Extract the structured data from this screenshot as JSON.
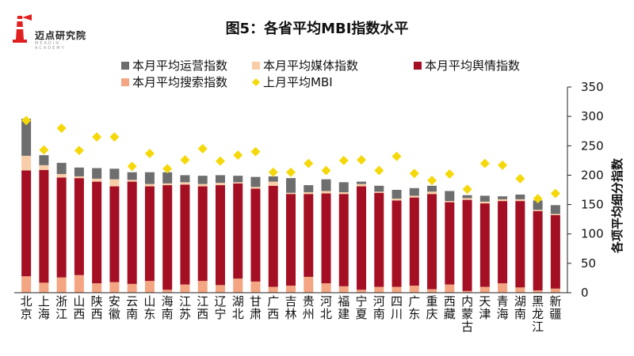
{
  "logo": {
    "name": "迈点研究院",
    "subtitle": "MEADIN ACADEMY"
  },
  "chart_data": {
    "type": "bar",
    "title": "图5：各省平均MBI指数水平",
    "xlabel": "",
    "ylabel": "各项平均细分指数",
    "ylim": [
      0,
      350
    ],
    "yticks": [
      0,
      50,
      100,
      150,
      200,
      250,
      300,
      350
    ],
    "grid": false,
    "legend_position": "top",
    "categories": [
      "北京",
      "上海",
      "浙江",
      "山西",
      "陕西",
      "安徽",
      "云南",
      "山东",
      "海南",
      "江苏",
      "江西",
      "辽宁",
      "湖北",
      "甘肃",
      "广西",
      "吉林",
      "贵州",
      "河北",
      "福建",
      "宁夏",
      "河南",
      "四川",
      "广东",
      "重庆",
      "西藏",
      "内蒙古",
      "天津",
      "青海",
      "湖南",
      "黑龙江",
      "新疆"
    ],
    "series": [
      {
        "name": "本月平均搜索指数",
        "color": "#F4A582",
        "values": [
          28,
          17,
          26,
          30,
          16,
          18,
          15,
          20,
          5,
          14,
          20,
          13,
          24,
          19,
          10,
          12,
          27,
          16,
          11,
          5,
          10,
          10,
          12,
          6,
          14,
          3,
          10,
          16,
          9,
          4,
          7
        ]
      },
      {
        "name": "本月平均舆情指数",
        "color": "#A50F24",
        "values": [
          180,
          192,
          170,
          165,
          173,
          163,
          174,
          161,
          178,
          170,
          161,
          170,
          162,
          158,
          172,
          156,
          141,
          153,
          157,
          176,
          160,
          147,
          150,
          162,
          140,
          155,
          142,
          140,
          147,
          135,
          125
        ]
      },
      {
        "name": "本月平均媒体指数",
        "color": "#F9CDA8",
        "values": [
          25,
          8,
          6,
          3,
          5,
          12,
          3,
          4,
          3,
          4,
          4,
          4,
          2,
          3,
          7,
          2,
          3,
          4,
          3,
          4,
          2,
          3,
          3,
          4,
          2,
          3,
          3,
          3,
          3,
          2,
          2
        ]
      },
      {
        "name": "本月平均运营指数",
        "color": "#6E6E6E",
        "values": [
          63,
          17,
          19,
          15,
          18,
          18,
          13,
          20,
          19,
          12,
          14,
          13,
          11,
          17,
          9,
          25,
          12,
          20,
          17,
          4,
          10,
          15,
          13,
          10,
          17,
          5,
          10,
          5,
          8,
          16,
          15
        ]
      }
    ],
    "line_series": {
      "name": "上月平均MBI",
      "color": "#F5D80A",
      "values": [
        293,
        243,
        280,
        242,
        265,
        265,
        215,
        237,
        211,
        226,
        245,
        224,
        234,
        240,
        205,
        205,
        220,
        208,
        225,
        226,
        208,
        232,
        203,
        191,
        202,
        176,
        220,
        217,
        194,
        160,
        169
      ]
    },
    "legend_order": [
      "本月平均运营指数",
      "本月平均媒体指数",
      "本月平均舆情指数",
      "本月平均搜索指数",
      "上月平均MBI"
    ]
  }
}
